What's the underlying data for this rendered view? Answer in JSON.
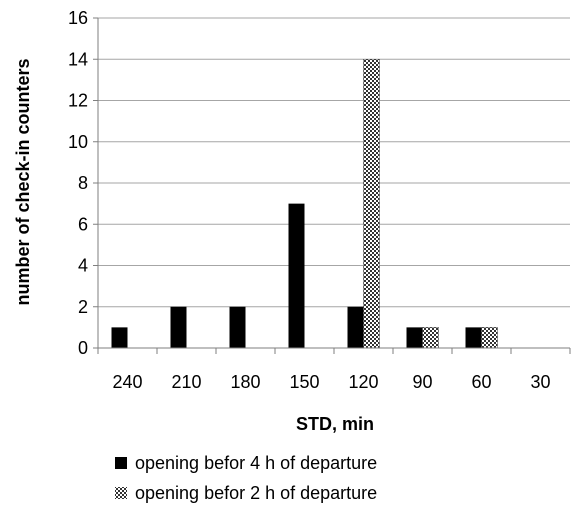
{
  "chart_data": {
    "type": "bar",
    "categories": [
      "240",
      "210",
      "180",
      "150",
      "120",
      "90",
      "60",
      "30"
    ],
    "series": [
      {
        "name": "opening befor 4 h of departure",
        "values": [
          1,
          2,
          2,
          7,
          2,
          1,
          1,
          0
        ],
        "color": "#000000",
        "pattern": "solid"
      },
      {
        "name": "opening befor 2 h of departure",
        "values": [
          0,
          0,
          0,
          0,
          14,
          1,
          1,
          0
        ],
        "color": "#555555",
        "pattern": "checker"
      }
    ],
    "title": "",
    "xlabel": "STD, min",
    "ylabel": "number of check-in counters",
    "ylim": [
      0,
      16
    ],
    "yticks": [
      0,
      2,
      4,
      6,
      8,
      10,
      12,
      14,
      16
    ],
    "grid": true,
    "legend": "bottom"
  }
}
